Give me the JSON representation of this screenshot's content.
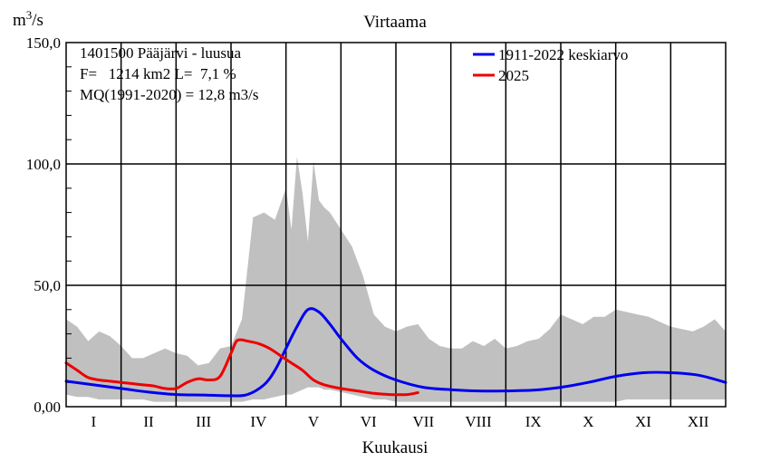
{
  "chart_data": {
    "type": "area",
    "title": "Virtaama",
    "ylabel": "m3/s",
    "ylabel_base": "m",
    "ylabel_sup": "3",
    "ylabel_tail": "/s",
    "xlabel": "Kuukausi",
    "ylim": [
      0,
      150
    ],
    "y_ticks": [
      "0,00",
      "50,0",
      "100,0",
      "150,0"
    ],
    "y_tick_values": [
      0,
      50,
      100,
      150
    ],
    "x_range": [
      0,
      12
    ],
    "categories": [
      "I",
      "II",
      "III",
      "IV",
      "V",
      "VI",
      "VII",
      "VIII",
      "IX",
      "X",
      "XI",
      "XII"
    ],
    "grid": true,
    "legend_position": "top-right",
    "info_lines": [
      "1401500 Pääjärvi - luusua",
      "F=   1214 km2 L=  7,1 %",
      "MQ(1991-2020) = 12,8 m3/s"
    ],
    "range_band": {
      "color": "#c0c0c0",
      "x": [
        0,
        0.2,
        0.4,
        0.6,
        0.8,
        1.0,
        1.2,
        1.4,
        1.6,
        1.8,
        2.0,
        2.2,
        2.4,
        2.6,
        2.8,
        3.0,
        3.2,
        3.4,
        3.6,
        3.8,
        4.0,
        4.1,
        4.2,
        4.3,
        4.4,
        4.5,
        4.6,
        4.7,
        4.8,
        5.0,
        5.2,
        5.4,
        5.6,
        5.8,
        6.0,
        6.2,
        6.4,
        6.6,
        6.8,
        7.0,
        7.2,
        7.4,
        7.6,
        7.8,
        8.0,
        8.2,
        8.4,
        8.6,
        8.8,
        9.0,
        9.2,
        9.4,
        9.6,
        9.8,
        10.0,
        10.2,
        10.4,
        10.6,
        10.8,
        11.0,
        11.2,
        11.4,
        11.6,
        11.8,
        12.0
      ],
      "upper": [
        36,
        33,
        27,
        31,
        29,
        25,
        20,
        20,
        22,
        24,
        22,
        21,
        17,
        18,
        24,
        25,
        36,
        78,
        80,
        77,
        90,
        73,
        103,
        88,
        68,
        101,
        85,
        82,
        80,
        73,
        66,
        54,
        38,
        33,
        31,
        33,
        34,
        28,
        25,
        24,
        24,
        27,
        25,
        28,
        24,
        25,
        27,
        28,
        32,
        38,
        36,
        34,
        37,
        37,
        40,
        39,
        38,
        37,
        35,
        33,
        32,
        31,
        33,
        36,
        31
      ],
      "lower": [
        5,
        4,
        4,
        3,
        3,
        3,
        3,
        3,
        2,
        2,
        2,
        2,
        2,
        2,
        2,
        2,
        2,
        3,
        3,
        4,
        5,
        5,
        6,
        7,
        8,
        8,
        8,
        7,
        7,
        6,
        5,
        4,
        3,
        3,
        2,
        2,
        2,
        2,
        2,
        2,
        2,
        2,
        2,
        2,
        2,
        2,
        2,
        2,
        2,
        2,
        2,
        2,
        2,
        2,
        2,
        3,
        3,
        3,
        3,
        3,
        3,
        3,
        3,
        3,
        3
      ]
    },
    "series": [
      {
        "name": "1911-2022 keskiarvo",
        "color": "#0000ee",
        "x": [
          0,
          0.5,
          1.0,
          1.5,
          2.0,
          2.5,
          3.0,
          3.3,
          3.6,
          3.8,
          4.0,
          4.2,
          4.4,
          4.6,
          4.8,
          5.0,
          5.3,
          5.6,
          6.0,
          6.5,
          7.0,
          7.5,
          8.0,
          8.5,
          9.0,
          9.5,
          10.0,
          10.5,
          11.0,
          11.5,
          12.0
        ],
        "y": [
          10.5,
          9,
          7.5,
          6,
          5,
          4.8,
          4.5,
          5,
          9,
          15,
          24,
          33,
          40,
          39,
          34,
          28,
          20,
          15,
          11,
          8,
          7,
          6.5,
          6.5,
          6.8,
          8,
          10,
          12.5,
          14,
          14,
          13,
          10
        ]
      },
      {
        "name": "2025",
        "color": "#ee0000",
        "x": [
          0,
          0.2,
          0.4,
          0.6,
          0.8,
          1.0,
          1.2,
          1.4,
          1.6,
          1.8,
          2.0,
          2.2,
          2.4,
          2.6,
          2.8,
          3.0,
          3.1,
          3.2,
          3.3,
          3.5,
          3.7,
          3.9,
          4.1,
          4.3,
          4.5,
          4.7,
          5.0,
          5.3,
          5.6,
          5.9,
          6.2,
          6.4
        ],
        "y": [
          18,
          15,
          12,
          11,
          10.5,
          10,
          9.5,
          9,
          8.5,
          7.5,
          7.5,
          10,
          11.5,
          11,
          12.5,
          22,
          27,
          27.5,
          27,
          26,
          24,
          21,
          18,
          15,
          11,
          9,
          7.5,
          6.5,
          5.5,
          5,
          5,
          5.8
        ]
      }
    ]
  }
}
